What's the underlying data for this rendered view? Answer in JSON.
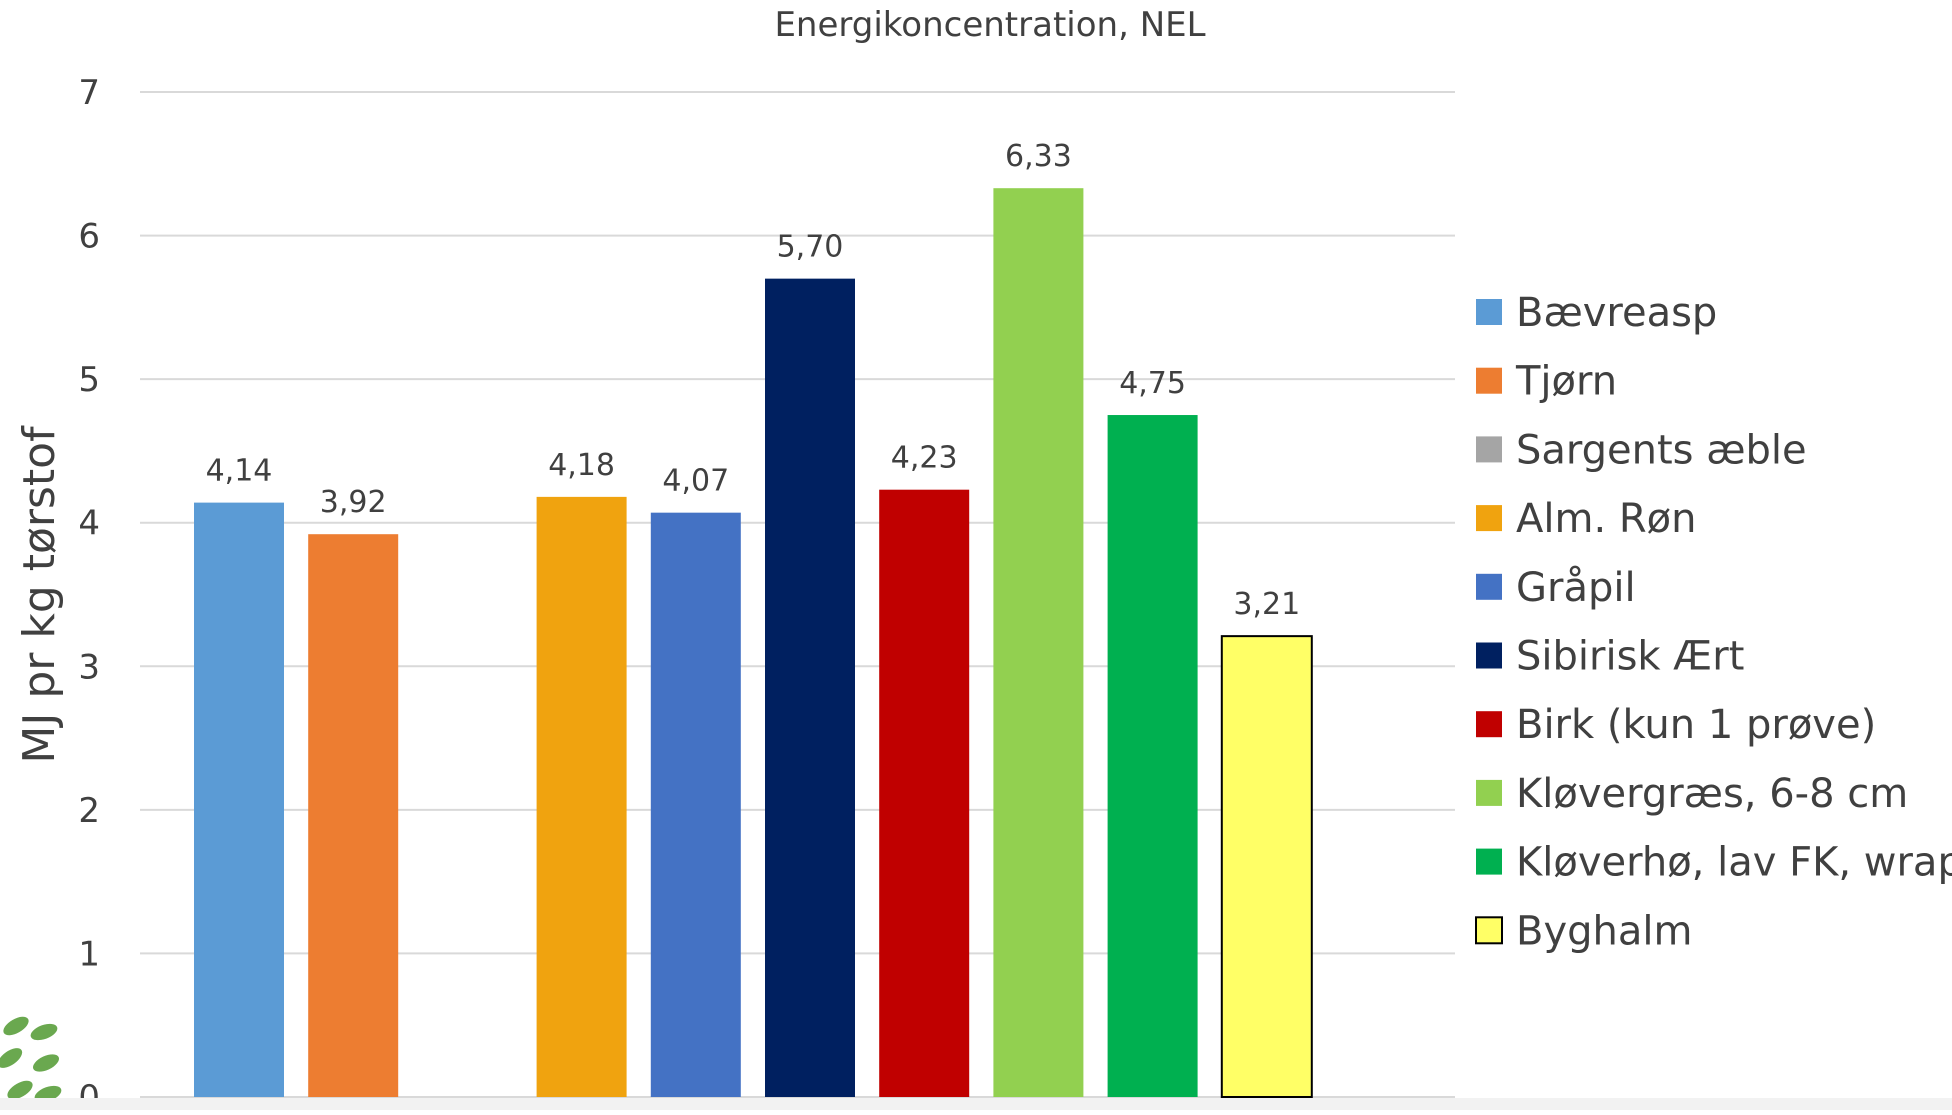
{
  "chart_data": {
    "type": "bar",
    "title": "Energikoncentration, NEL",
    "xlabel": "",
    "ylabel": "MJ pr kg tørstof",
    "ylim": [
      0,
      7
    ],
    "yticks": [
      "0",
      "1",
      "2",
      "3",
      "4",
      "5",
      "6",
      "7"
    ],
    "grid": true,
    "legend_position": "right",
    "series": [
      {
        "name": "Bævreasp",
        "value": 4.14,
        "label": "4,14",
        "color": "#5b9bd5"
      },
      {
        "name": "Tjørn",
        "value": 3.92,
        "label": "3,92",
        "color": "#ed7d31"
      },
      {
        "name": "Sargents æble",
        "value": null,
        "label": "",
        "color": "#a5a5a5"
      },
      {
        "name": "Alm. Røn",
        "value": 4.18,
        "label": "4,18",
        "color": "#f0a30f"
      },
      {
        "name": "Gråpil",
        "value": 4.07,
        "label": "4,07",
        "color": "#4472c4"
      },
      {
        "name": "Sibirisk Ært",
        "value": 5.7,
        "label": "5,70",
        "color": "#002060"
      },
      {
        "name": "Birk (kun 1 prøve)",
        "value": 4.23,
        "label": "4,23",
        "color": "#c00000"
      },
      {
        "name": "Kløvergræs, 6-8 cm",
        "value": 6.33,
        "label": "6,33",
        "color": "#92d050"
      },
      {
        "name": "Kløverhø, lav FK, wrap",
        "value": 4.75,
        "label": "4,75",
        "color": "#00b050"
      },
      {
        "name": "Byghalm",
        "value": 3.21,
        "label": "3,21",
        "color": "#ffff66",
        "outline": "#000000"
      }
    ]
  },
  "decor": {
    "leaf_color": "#6aa84f"
  }
}
